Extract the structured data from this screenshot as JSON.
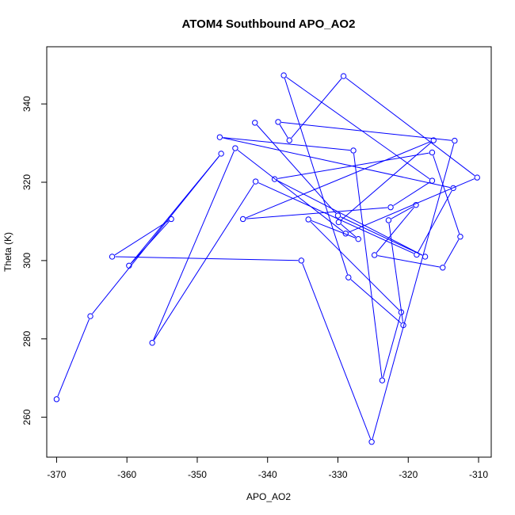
{
  "chart_data": {
    "type": "line",
    "title": "ATOM4 Southbound APO_AO2",
    "xlabel": "APO_AO2",
    "ylabel": "Theta (K)",
    "xlim": [
      -371.4,
      -308.2
    ],
    "ylim": [
      249.8,
      354.6
    ],
    "xticks": [
      -370,
      -360,
      -350,
      -340,
      -330,
      -320,
      -310
    ],
    "yticks": [
      260,
      280,
      300,
      320,
      340
    ],
    "grid": false,
    "legend": "none",
    "series_color": "#0000ff",
    "markers": "open-circle",
    "series": [
      {
        "points": [
          [
            -370.0,
            264.6
          ],
          [
            -365.2,
            285.8
          ],
          [
            -346.6,
            327.3
          ],
          [
            -359.7,
            298.7
          ],
          [
            -353.7,
            310.6
          ],
          [
            -362.1,
            301.0
          ],
          [
            -335.2,
            300.0
          ],
          [
            -325.2,
            253.7
          ],
          [
            -313.4,
            330.6
          ],
          [
            -338.5,
            335.4
          ],
          [
            -336.9,
            330.7
          ],
          [
            -329.2,
            347.1
          ],
          [
            -310.2,
            321.2
          ],
          [
            -328.9,
            306.9
          ],
          [
            -344.6,
            328.7
          ],
          [
            -356.4,
            279.0
          ],
          [
            -341.7,
            320.2
          ],
          [
            -318.8,
            301.5
          ],
          [
            -313.6,
            318.5
          ],
          [
            -346.8,
            331.5
          ],
          [
            -327.8,
            328.1
          ],
          [
            -323.7,
            269.4
          ],
          [
            -321.0,
            286.8
          ],
          [
            -334.2,
            310.5
          ],
          [
            -327.1,
            305.5
          ],
          [
            -329.9,
            309.8
          ],
          [
            -316.4,
            330.7
          ],
          [
            -343.5,
            310.6
          ],
          [
            -322.5,
            313.6
          ],
          [
            -316.6,
            320.4
          ],
          [
            -337.7,
            347.3
          ],
          [
            -328.5,
            295.7
          ],
          [
            -320.7,
            283.5
          ],
          [
            -322.8,
            310.3
          ],
          [
            -318.9,
            314.2
          ],
          [
            -324.8,
            301.4
          ],
          [
            -315.1,
            298.2
          ],
          [
            -312.6,
            306.1
          ],
          [
            -316.6,
            327.6
          ],
          [
            -339.0,
            320.8
          ],
          [
            -317.6,
            301.0
          ],
          [
            -330.0,
            311.5
          ],
          [
            -341.8,
            335.2
          ]
        ]
      }
    ]
  }
}
